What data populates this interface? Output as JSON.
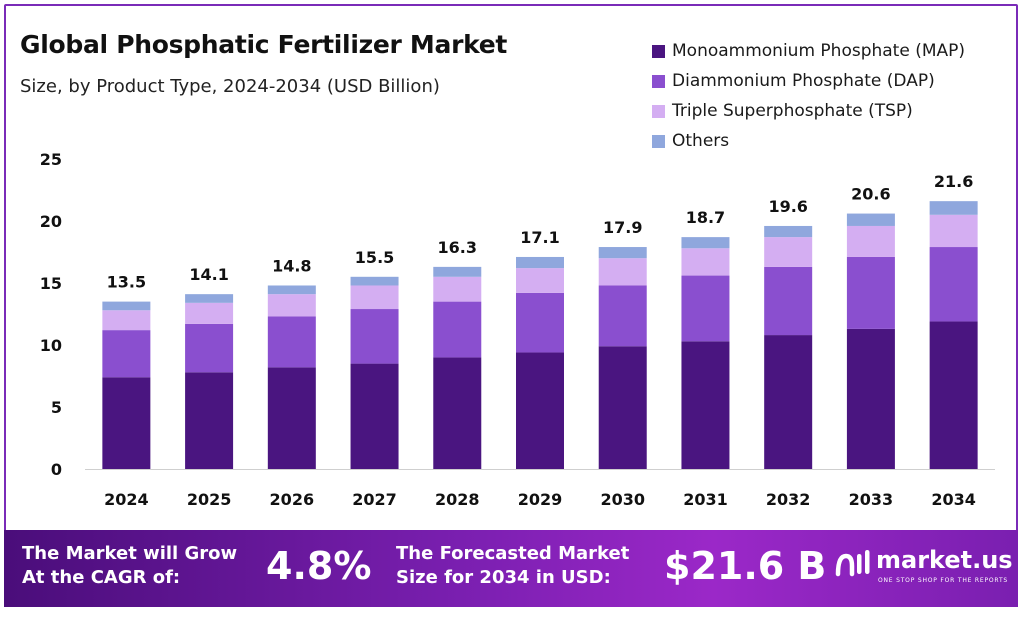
{
  "chart_data": {
    "type": "bar",
    "stacked": true,
    "title": "Global Phosphatic Fertilizer Market",
    "subtitle": "Size, by Product Type, 2024-2034 (USD Billion)",
    "categories": [
      "2024",
      "2025",
      "2026",
      "2027",
      "2028",
      "2029",
      "2030",
      "2031",
      "2032",
      "2033",
      "2034"
    ],
    "totals": [
      "13.5",
      "14.1",
      "14.8",
      "15.5",
      "16.3",
      "17.1",
      "17.9",
      "18.7",
      "19.6",
      "20.6",
      "21.6"
    ],
    "series": [
      {
        "name": "Monoammonium Phosphate (MAP)",
        "color": "#4a1580",
        "values": [
          7.4,
          7.8,
          8.2,
          8.5,
          9.0,
          9.4,
          9.9,
          10.3,
          10.8,
          11.3,
          11.9
        ]
      },
      {
        "name": "Diammonium Phosphate (DAP)",
        "color": "#8a4fcf",
        "values": [
          3.8,
          3.9,
          4.1,
          4.4,
          4.5,
          4.8,
          4.9,
          5.3,
          5.5,
          5.8,
          6.0
        ]
      },
      {
        "name": "Triple Superphosphate (TSP)",
        "color": "#d4aef2",
        "values": [
          1.6,
          1.7,
          1.8,
          1.9,
          2.0,
          2.0,
          2.2,
          2.2,
          2.4,
          2.5,
          2.6
        ]
      },
      {
        "name": "Others",
        "color": "#8fa7dd",
        "values": [
          0.7,
          0.7,
          0.7,
          0.7,
          0.8,
          0.9,
          0.9,
          0.9,
          0.9,
          1.0,
          1.1
        ]
      }
    ],
    "y_ticks": [
      "25",
      "20",
      "15",
      "10",
      "5",
      "0"
    ],
    "ylim": [
      0,
      25
    ],
    "grid": false,
    "legend_position": "top-right"
  },
  "footer": {
    "cagr_text": "The Market will Grow\nAt the CAGR of:",
    "cagr_value": "4.8%",
    "forecast_text": "The Forecasted Market\nSize for 2034 in USD:",
    "forecast_value": "$21.6 B",
    "brand_name": "market.us",
    "brand_tagline": "ONE STOP SHOP FOR THE REPORTS"
  }
}
